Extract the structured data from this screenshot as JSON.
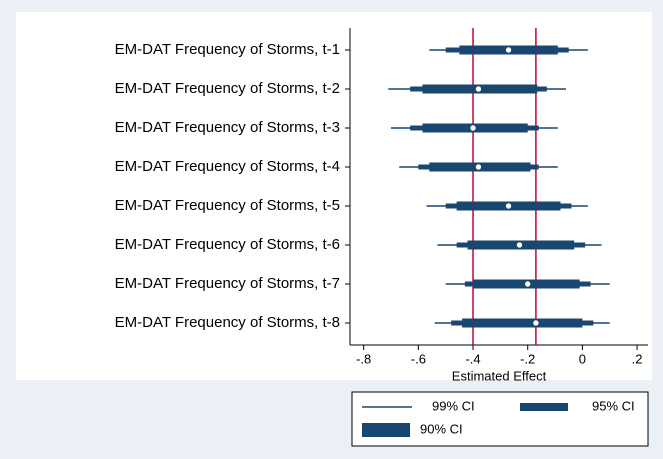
{
  "chart_data": {
    "type": "coefplot",
    "xlabel": "Estimated Effect",
    "categories": [
      "EM-DAT Frequency of Storms, t-1",
      "EM-DAT Frequency of Storms, t-2",
      "EM-DAT Frequency of Storms, t-3",
      "EM-DAT Frequency of Storms, t-4",
      "EM-DAT Frequency of Storms, t-5",
      "EM-DAT Frequency of Storms, t-6",
      "EM-DAT Frequency of Storms, t-7",
      "EM-DAT Frequency of Storms, t-8"
    ],
    "estimates": [
      -0.27,
      -0.38,
      -0.4,
      -0.38,
      -0.27,
      -0.23,
      -0.2,
      -0.17
    ],
    "series": [
      {
        "name": "99% CI",
        "color": "#1a476f",
        "lower": [
          -0.56,
          -0.71,
          -0.7,
          -0.67,
          -0.57,
          -0.53,
          -0.5,
          -0.54
        ],
        "upper": [
          0.02,
          -0.06,
          -0.09,
          -0.09,
          0.02,
          0.07,
          0.1,
          0.1
        ]
      },
      {
        "name": "95% CI",
        "color": "#1a476f",
        "lower": [
          -0.5,
          -0.63,
          -0.63,
          -0.6,
          -0.5,
          -0.46,
          -0.43,
          -0.48
        ],
        "upper": [
          -0.05,
          -0.13,
          -0.16,
          -0.16,
          -0.04,
          0.01,
          0.03,
          0.04
        ]
      },
      {
        "name": "90% CI",
        "color": "#1a476f",
        "lower": [
          -0.45,
          -0.585,
          -0.585,
          -0.56,
          -0.46,
          -0.42,
          -0.4,
          -0.44
        ],
        "upper": [
          -0.09,
          -0.165,
          -0.2,
          -0.19,
          -0.08,
          -0.03,
          -0.01,
          0.0
        ]
      }
    ],
    "reference_lines": [
      -0.4,
      -0.17
    ],
    "reference_color": "#c10534",
    "xlim": [
      -0.85,
      0.24
    ],
    "xticks": [
      {
        "value": -0.8,
        "label": "-.8"
      },
      {
        "value": -0.6,
        "label": "-.6"
      },
      {
        "value": -0.4,
        "label": "-.4"
      },
      {
        "value": -0.2,
        "label": "-.2"
      },
      0,
      {
        "value": 0.2,
        "label": ".2"
      }
    ]
  }
}
